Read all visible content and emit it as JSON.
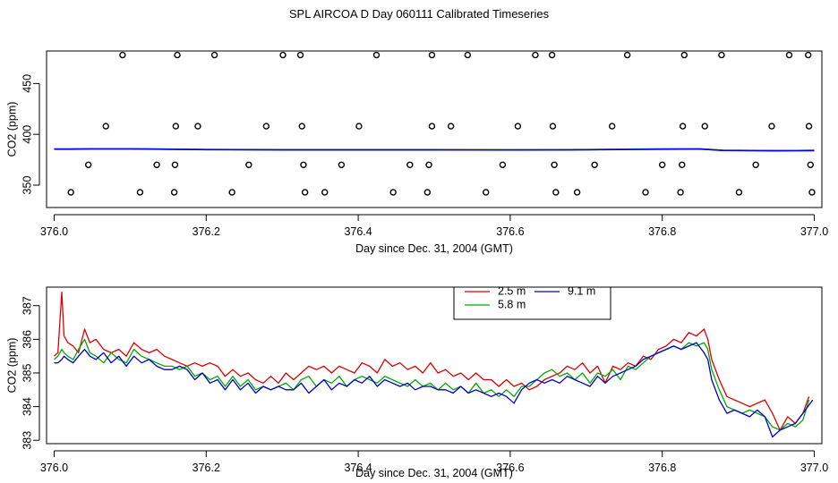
{
  "figure_title": "SPL AIRCOA D  Day 060111  Calibrated Timeseries",
  "chart_data": [
    {
      "type": "scatter",
      "title": "",
      "xlabel": "Day since Dec. 31, 2004 (GMT)",
      "ylabel": "CO2 (ppm)",
      "xlim": [
        375.99,
        377.01
      ],
      "ylim": [
        328,
        482
      ],
      "xticks": [
        376.0,
        376.2,
        376.4,
        376.6,
        376.8,
        377.0
      ],
      "xtick_labels": [
        "376.0",
        "376.2",
        "376.4",
        "376.6",
        "376.8",
        "377.0"
      ],
      "yticks": [
        350,
        400,
        450
      ],
      "ytick_labels": [
        "350",
        "400",
        "450"
      ],
      "calibration_points": {
        "x": [
          376.09,
          376.162,
          376.211,
          376.301,
          376.324,
          376.424,
          376.497,
          376.544,
          376.633,
          376.655,
          376.754,
          376.829,
          376.878,
          376.967,
          376.992,
          376.068,
          376.16,
          376.189,
          376.279,
          376.326,
          376.401,
          376.497,
          376.522,
          376.61,
          376.656,
          376.734,
          376.827,
          376.856,
          376.944,
          376.993,
          376.045,
          376.135,
          376.159,
          376.256,
          376.328,
          376.378,
          376.468,
          376.493,
          376.59,
          376.658,
          376.711,
          376.8,
          376.826,
          376.923,
          376.995,
          376.022,
          376.113,
          376.158,
          376.234,
          376.33,
          376.356,
          376.446,
          376.491,
          376.568,
          376.66,
          376.688,
          376.778,
          376.824,
          376.901,
          376.997
        ],
        "y": [
          478,
          478,
          478,
          478,
          478,
          478,
          478,
          478,
          478,
          478,
          478,
          478,
          478,
          478,
          478,
          408,
          408,
          408,
          408,
          408,
          408,
          408,
          408,
          408,
          408,
          408,
          408,
          408,
          408,
          408,
          370,
          370,
          370,
          370,
          370,
          370,
          370,
          370,
          370,
          370,
          370,
          370,
          370,
          370,
          370,
          343,
          343,
          343,
          343,
          343,
          343,
          343,
          343,
          343,
          343,
          343,
          343,
          343,
          343,
          343
        ]
      },
      "series": [
        {
          "name": "2.5 m",
          "color": "#ff0000",
          "x": [
            376.0,
            376.02,
            376.05,
            376.1,
            376.2,
            376.3,
            376.4,
            376.5,
            376.6,
            376.7,
            376.8,
            376.85,
            376.88,
            376.95,
            377.0
          ],
          "values": [
            385.6,
            385.6,
            385.8,
            385.8,
            385.0,
            384.9,
            384.9,
            384.9,
            384.8,
            385.0,
            385.6,
            385.7,
            384.3,
            384.0,
            384.2
          ]
        },
        {
          "name": "5.8 m",
          "color": "#00c000",
          "x": [
            376.0,
            376.02,
            376.05,
            376.1,
            376.2,
            376.3,
            376.4,
            376.5,
            376.6,
            376.7,
            376.8,
            376.85,
            376.88,
            376.95,
            377.0
          ],
          "values": [
            385.5,
            385.5,
            385.7,
            385.7,
            385.0,
            384.8,
            384.8,
            384.8,
            384.7,
            384.9,
            385.5,
            385.6,
            384.2,
            383.9,
            384.1
          ]
        },
        {
          "name": "9.1 m",
          "color": "#0000ff",
          "x": [
            376.0,
            376.02,
            376.05,
            376.1,
            376.2,
            376.3,
            376.4,
            376.5,
            376.6,
            376.7,
            376.8,
            376.85,
            376.88,
            376.95,
            377.0
          ],
          "values": [
            385.4,
            385.4,
            385.6,
            385.6,
            384.9,
            384.7,
            384.7,
            384.7,
            384.6,
            384.8,
            385.4,
            385.5,
            384.1,
            383.8,
            384.0
          ]
        }
      ]
    },
    {
      "type": "line",
      "title": "",
      "xlabel": "Day since Dec. 31, 2004 (GMT)",
      "ylabel": "CO2 (ppm)",
      "xlim": [
        375.99,
        377.01
      ],
      "ylim": [
        382.9,
        387.55
      ],
      "xticks": [
        376.0,
        376.2,
        376.4,
        376.6,
        376.8,
        377.0
      ],
      "xtick_labels": [
        "376.0",
        "376.2",
        "376.4",
        "376.6",
        "376.8",
        "377.0"
      ],
      "yticks": [
        383,
        384,
        385,
        386,
        387
      ],
      "ytick_labels": [
        "383",
        "384",
        "385",
        "386",
        "387"
      ],
      "legend_position": "top-center",
      "series": [
        {
          "name": "2.5 m",
          "color": "#dd0000",
          "x": [
            376.0,
            376.005,
            376.01,
            376.013,
            376.018,
            376.025,
            376.032,
            376.04,
            376.047,
            376.055,
            376.065,
            376.075,
            376.085,
            376.095,
            376.105,
            376.115,
            376.125,
            376.135,
            376.145,
            376.155,
            376.165,
            376.175,
            376.185,
            376.195,
            376.205,
            376.215,
            376.225,
            376.235,
            376.245,
            376.255,
            376.265,
            376.275,
            376.285,
            376.295,
            376.305,
            376.315,
            376.325,
            376.335,
            376.345,
            376.355,
            376.365,
            376.375,
            376.385,
            376.395,
            376.405,
            376.415,
            376.425,
            376.435,
            376.445,
            376.455,
            376.465,
            376.475,
            376.485,
            376.495,
            376.505,
            376.515,
            376.525,
            376.535,
            376.545,
            376.555,
            376.565,
            376.575,
            376.585,
            376.595,
            376.605,
            376.615,
            376.625,
            376.635,
            376.645,
            376.655,
            376.665,
            376.675,
            376.685,
            376.695,
            376.705,
            376.715,
            376.725,
            376.735,
            376.745,
            376.755,
            376.765,
            376.775,
            376.785,
            376.795,
            376.805,
            376.815,
            376.825,
            376.835,
            376.845,
            376.855,
            376.86,
            376.865,
            376.875,
            376.885,
            376.895,
            376.905,
            376.915,
            376.925,
            376.935,
            376.945,
            376.955,
            376.965,
            376.975,
            376.985,
            376.993
          ],
          "values": [
            385.5,
            385.6,
            387.4,
            386.1,
            385.9,
            385.8,
            385.6,
            386.3,
            385.9,
            386.0,
            385.7,
            385.6,
            385.7,
            385.5,
            385.9,
            385.7,
            385.6,
            385.7,
            385.5,
            385.4,
            385.3,
            385.2,
            385.3,
            385.2,
            385.3,
            385.2,
            384.9,
            385.1,
            384.9,
            385.0,
            384.8,
            384.7,
            384.9,
            384.7,
            385.0,
            384.8,
            385.0,
            385.2,
            385.1,
            385.2,
            385.0,
            385.2,
            385.1,
            385.0,
            385.3,
            385.2,
            385.0,
            385.4,
            385.2,
            385.3,
            385.1,
            385.2,
            385.0,
            385.3,
            385.0,
            385.1,
            384.9,
            385.0,
            384.8,
            385.0,
            384.8,
            384.8,
            384.6,
            384.8,
            384.6,
            384.7,
            384.5,
            384.6,
            384.8,
            384.9,
            385.0,
            385.2,
            385.1,
            385.3,
            385.0,
            385.2,
            384.7,
            385.2,
            385.1,
            385.3,
            385.2,
            385.5,
            385.4,
            385.7,
            385.8,
            386.0,
            385.9,
            386.2,
            386.1,
            386.3,
            386.0,
            385.4,
            384.8,
            384.3,
            384.2,
            384.1,
            384.0,
            384.1,
            384.2,
            383.8,
            383.3,
            383.7,
            383.5,
            383.8,
            384.3
          ]
        },
        {
          "name": "5.8 m",
          "color": "#00aa00",
          "x": [
            376.0,
            376.005,
            376.01,
            376.013,
            376.018,
            376.025,
            376.032,
            376.04,
            376.047,
            376.055,
            376.065,
            376.075,
            376.085,
            376.095,
            376.105,
            376.115,
            376.125,
            376.135,
            376.145,
            376.155,
            376.165,
            376.175,
            376.185,
            376.195,
            376.205,
            376.215,
            376.225,
            376.235,
            376.245,
            376.255,
            376.265,
            376.275,
            376.285,
            376.295,
            376.305,
            376.315,
            376.325,
            376.335,
            376.345,
            376.355,
            376.365,
            376.375,
            376.385,
            376.395,
            376.405,
            376.415,
            376.425,
            376.435,
            376.445,
            376.455,
            376.465,
            376.475,
            376.485,
            376.495,
            376.505,
            376.515,
            376.525,
            376.535,
            376.545,
            376.555,
            376.565,
            376.575,
            376.585,
            376.595,
            376.605,
            376.615,
            376.625,
            376.635,
            376.645,
            376.655,
            376.665,
            376.675,
            376.685,
            376.695,
            376.705,
            376.715,
            376.725,
            376.735,
            376.745,
            376.755,
            376.765,
            376.775,
            376.785,
            376.795,
            376.805,
            376.815,
            376.825,
            376.835,
            376.845,
            376.855,
            376.86,
            376.865,
            376.875,
            376.885,
            376.895,
            376.905,
            376.915,
            376.925,
            376.935,
            376.945,
            376.955,
            376.965,
            376.975,
            376.985,
            376.993
          ],
          "values": [
            385.4,
            385.5,
            385.7,
            385.6,
            385.5,
            385.4,
            385.7,
            386.0,
            385.6,
            385.5,
            385.3,
            385.6,
            385.4,
            385.3,
            385.7,
            385.5,
            385.4,
            385.3,
            385.2,
            385.2,
            385.1,
            385.2,
            384.9,
            385.0,
            384.8,
            384.9,
            384.6,
            384.9,
            384.6,
            384.8,
            384.5,
            384.6,
            384.5,
            384.6,
            384.7,
            384.5,
            384.8,
            384.9,
            384.6,
            384.8,
            384.7,
            384.9,
            384.6,
            384.8,
            384.9,
            384.8,
            384.7,
            384.9,
            384.8,
            384.7,
            384.6,
            384.8,
            384.6,
            384.7,
            384.5,
            384.7,
            384.5,
            384.6,
            384.4,
            384.7,
            384.4,
            384.5,
            384.3,
            384.5,
            384.3,
            384.6,
            384.6,
            384.8,
            385.0,
            385.1,
            384.9,
            385.0,
            384.8,
            385.0,
            384.7,
            385.0,
            384.9,
            385.1,
            384.8,
            385.2,
            385.1,
            385.3,
            385.5,
            385.6,
            385.7,
            385.8,
            385.7,
            385.9,
            385.8,
            385.9,
            385.7,
            385.1,
            384.5,
            384.0,
            383.9,
            383.8,
            383.9,
            383.8,
            383.7,
            383.4,
            383.3,
            383.5,
            383.4,
            383.6,
            384.2
          ]
        },
        {
          "name": "9.1 m",
          "color": "#0000cc",
          "x": [
            376.0,
            376.005,
            376.01,
            376.013,
            376.018,
            376.025,
            376.032,
            376.04,
            376.047,
            376.055,
            376.065,
            376.075,
            376.085,
            376.095,
            376.105,
            376.115,
            376.125,
            376.135,
            376.145,
            376.155,
            376.165,
            376.175,
            376.185,
            376.195,
            376.205,
            376.215,
            376.225,
            376.235,
            376.245,
            376.255,
            376.265,
            376.275,
            376.285,
            376.295,
            376.305,
            376.315,
            376.325,
            376.335,
            376.345,
            376.355,
            376.365,
            376.375,
            376.385,
            376.395,
            376.405,
            376.415,
            376.425,
            376.435,
            376.445,
            376.455,
            376.465,
            376.475,
            376.485,
            376.495,
            376.505,
            376.515,
            376.525,
            376.535,
            376.545,
            376.555,
            376.565,
            376.575,
            376.585,
            376.595,
            376.605,
            376.615,
            376.625,
            376.635,
            376.645,
            376.655,
            376.665,
            376.675,
            376.685,
            376.695,
            376.705,
            376.715,
            376.725,
            376.735,
            376.745,
            376.755,
            376.765,
            376.775,
            376.785,
            376.795,
            376.805,
            376.815,
            376.825,
            376.835,
            376.845,
            376.855,
            376.86,
            376.865,
            376.875,
            376.885,
            376.895,
            376.905,
            376.915,
            376.925,
            376.935,
            376.945,
            376.955,
            376.965,
            376.975,
            376.985,
            376.998
          ],
          "values": [
            385.3,
            385.3,
            385.4,
            385.5,
            385.4,
            385.3,
            385.5,
            385.7,
            385.5,
            385.4,
            385.6,
            385.3,
            385.5,
            385.2,
            385.5,
            385.3,
            385.4,
            385.2,
            385.1,
            385.1,
            385.2,
            385.1,
            384.8,
            385.0,
            384.7,
            384.8,
            384.5,
            384.8,
            384.5,
            384.7,
            384.4,
            384.6,
            384.5,
            384.6,
            384.5,
            384.5,
            384.7,
            384.4,
            384.6,
            384.8,
            384.5,
            384.7,
            384.6,
            384.8,
            384.7,
            384.9,
            384.6,
            384.8,
            384.7,
            384.6,
            384.7,
            384.5,
            384.6,
            384.6,
            384.5,
            384.5,
            384.4,
            384.6,
            384.4,
            384.5,
            384.4,
            384.3,
            384.4,
            384.3,
            384.1,
            384.5,
            384.7,
            384.8,
            384.7,
            384.8,
            384.7,
            384.9,
            384.8,
            384.7,
            384.6,
            384.9,
            384.7,
            384.9,
            385.0,
            385.1,
            385.2,
            385.4,
            385.5,
            385.6,
            385.7,
            385.8,
            385.7,
            385.8,
            385.9,
            385.6,
            385.4,
            384.8,
            384.2,
            383.8,
            383.9,
            383.8,
            383.7,
            383.9,
            383.7,
            383.1,
            383.3,
            383.4,
            383.5,
            383.8,
            384.2
          ]
        }
      ]
    }
  ]
}
